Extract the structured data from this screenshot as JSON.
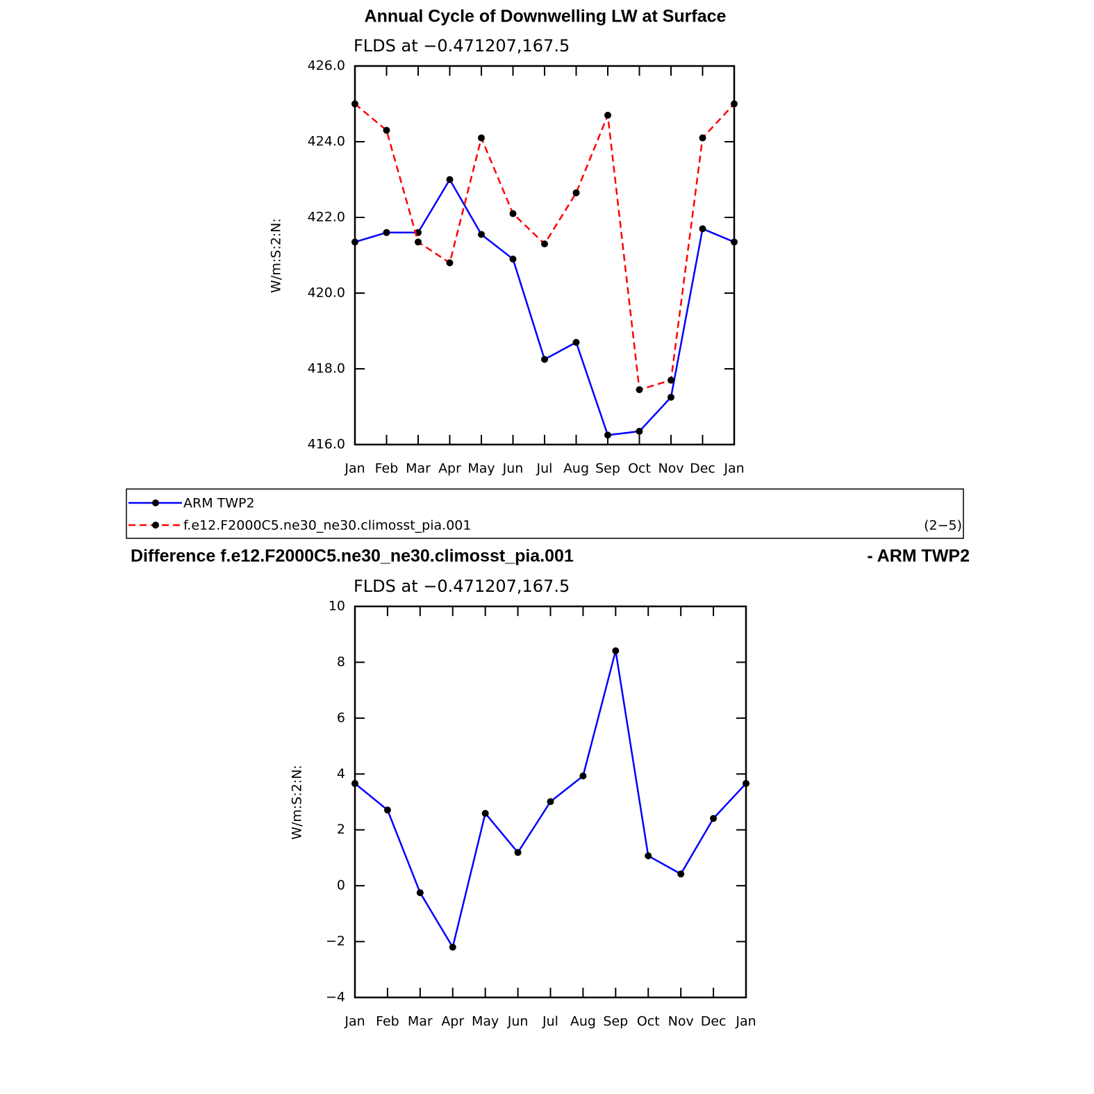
{
  "chart_data": [
    {
      "type": "line",
      "title": "Annual Cycle of Downwelling LW at Surface",
      "subtitle": "FLDS at −0.471207,167.5",
      "ylabel": "W/m:S:2:N:",
      "categories": [
        "Jan",
        "Feb",
        "Mar",
        "Apr",
        "May",
        "Jun",
        "Jul",
        "Aug",
        "Sep",
        "Oct",
        "Nov",
        "Dec",
        "Jan"
      ],
      "series": [
        {
          "name": "ARM TWP2",
          "color": "#0000ff",
          "dash": false,
          "values": [
            421.35,
            421.6,
            421.6,
            423.0,
            421.55,
            420.9,
            418.25,
            418.7,
            416.25,
            416.35,
            417.25,
            421.7,
            421.35
          ]
        },
        {
          "name": "f.e12.F2000C5.ne30_ne30.climosst_pia.001",
          "color": "#ff0000",
          "dash": true,
          "values": [
            425.0,
            424.3,
            421.35,
            420.8,
            424.1,
            422.1,
            421.3,
            422.65,
            424.7,
            417.45,
            417.7,
            424.1,
            425.0
          ]
        }
      ],
      "legend_note": "(2−5)",
      "ylim": [
        416,
        426
      ],
      "yticks": [
        {
          "value": 416,
          "label": "416.0"
        },
        {
          "value": 418,
          "label": "418.0"
        },
        {
          "value": 420,
          "label": "420.0"
        },
        {
          "value": 422,
          "label": "422.0"
        },
        {
          "value": 424,
          "label": "424.0"
        },
        {
          "value": 426,
          "label": "426.0"
        }
      ]
    },
    {
      "type": "line",
      "title": "Difference f.e12.F2000C5.ne30_ne30.climosst_pia.001",
      "title_suffix": "- ARM TWP2",
      "subtitle": "FLDS at −0.471207,167.5",
      "ylabel": "W/m:S:2:N:",
      "categories": [
        "Jan",
        "Feb",
        "Mar",
        "Apr",
        "May",
        "Jun",
        "Jul",
        "Aug",
        "Sep",
        "Oct",
        "Nov",
        "Dec",
        "Jan"
      ],
      "color": "#0000ff",
      "values": [
        3.66,
        2.71,
        -0.25,
        -2.2,
        2.59,
        1.19,
        3.01,
        3.93,
        8.41,
        1.07,
        0.42,
        2.41,
        3.66
      ],
      "ylim": [
        -4,
        10
      ],
      "yticks": [
        {
          "value": -4,
          "label": "−4"
        },
        {
          "value": -2,
          "label": "−2"
        },
        0,
        2,
        4,
        6,
        8,
        10
      ]
    }
  ]
}
